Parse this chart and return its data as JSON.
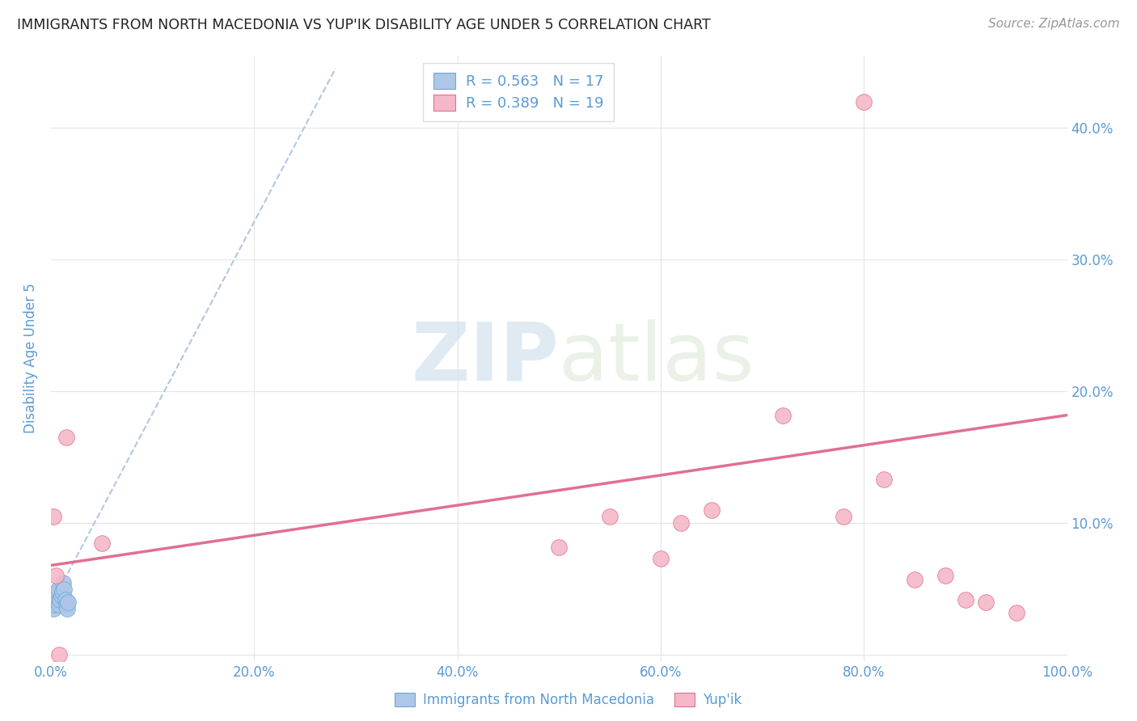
{
  "title": "IMMIGRANTS FROM NORTH MACEDONIA VS YUP'IK DISABILITY AGE UNDER 5 CORRELATION CHART",
  "source": "Source: ZipAtlas.com",
  "xlabel": "",
  "ylabel": "Disability Age Under 5",
  "xlim": [
    0.0,
    1.0
  ],
  "ylim": [
    -0.005,
    0.455
  ],
  "xticks": [
    0.0,
    0.2,
    0.4,
    0.6,
    0.8,
    1.0
  ],
  "xtick_labels": [
    "0.0%",
    "20.0%",
    "40.0%",
    "60.0%",
    "80.0%",
    "100.0%"
  ],
  "yticks": [
    0.0,
    0.1,
    0.2,
    0.3,
    0.4
  ],
  "right_ytick_labels": [
    "",
    "10.0%",
    "20.0%",
    "30.0%",
    "40.0%"
  ],
  "blue_R": "0.563",
  "blue_N": "17",
  "pink_R": "0.389",
  "pink_N": "19",
  "blue_color": "#aec6e8",
  "pink_color": "#f5b8c8",
  "blue_line_color": "#6aaad4",
  "pink_line_color": "#e07090",
  "blue_dash_color": "#b0c8e0",
  "watermark_zip": "ZIP",
  "watermark_atlas": "atlas",
  "blue_scatter_x": [
    0.001,
    0.002,
    0.003,
    0.004,
    0.005,
    0.006,
    0.007,
    0.008,
    0.009,
    0.01,
    0.011,
    0.012,
    0.013,
    0.014,
    0.015,
    0.016,
    0.017
  ],
  "blue_scatter_y": [
    0.04,
    0.035,
    0.038,
    0.042,
    0.045,
    0.048,
    0.05,
    0.038,
    0.042,
    0.045,
    0.048,
    0.055,
    0.05,
    0.042,
    0.038,
    0.035,
    0.04
  ],
  "pink_scatter_x": [
    0.002,
    0.005,
    0.008,
    0.015,
    0.05,
    0.5,
    0.55,
    0.6,
    0.62,
    0.65,
    0.72,
    0.78,
    0.8,
    0.82,
    0.85,
    0.88,
    0.9,
    0.92,
    0.95
  ],
  "pink_scatter_y": [
    0.105,
    0.06,
    0.0,
    0.165,
    0.085,
    0.082,
    0.105,
    0.073,
    0.1,
    0.11,
    0.182,
    0.105,
    0.42,
    0.133,
    0.057,
    0.06,
    0.042,
    0.04,
    0.032
  ],
  "blue_trend_x0": 0.0,
  "blue_trend_y0": 0.038,
  "blue_trend_x1": 0.28,
  "blue_trend_y1": 0.445,
  "pink_trend_x0": 0.0,
  "pink_trend_y0": 0.068,
  "pink_trend_x1": 1.0,
  "pink_trend_y1": 0.182,
  "background_color": "#ffffff",
  "grid_color": "#e5e5e5",
  "title_color": "#222222",
  "axis_label_color": "#5b9bd5",
  "legend_text_color": "#5b9bd5"
}
